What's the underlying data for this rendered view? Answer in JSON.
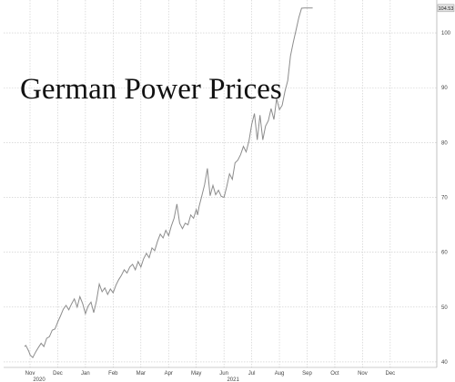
{
  "chart_data": {
    "type": "line",
    "title": "German Power Prices",
    "xlabel": "",
    "ylabel": "",
    "x_tick_labels": [
      "Nov",
      "Dec",
      "Jan",
      "Feb",
      "Mar",
      "Apr",
      "May",
      "Jun",
      "Jul",
      "Aug",
      "Sep",
      "Oct",
      "Nov",
      "Dec"
    ],
    "x_year_labels": [
      {
        "label": "2020",
        "month_index": 0
      },
      {
        "label": "2021",
        "month_index": 7
      }
    ],
    "y_tick_labels": [
      "40",
      "50",
      "60",
      "70",
      "80",
      "90",
      "100"
    ],
    "ylim": [
      39,
      106
    ],
    "last_value_label": "104.53",
    "grid": true,
    "colors": {
      "line": "#8c8c8c",
      "grid": "#c8c8c8",
      "badge": "#e2e2e2"
    },
    "series": [
      {
        "x_month": [
          -0.2,
          -0.15,
          -0.05,
          0,
          0.1,
          0.2,
          0.3,
          0.4,
          0.5,
          0.6,
          0.7,
          0.8,
          0.9,
          1.0,
          1.1,
          1.2,
          1.3,
          1.4,
          1.5,
          1.6,
          1.7,
          1.8,
          1.9,
          2.0,
          2.1,
          2.2,
          2.3,
          2.4,
          2.5,
          2.6,
          2.7,
          2.8,
          2.9,
          3.0,
          3.1,
          3.2,
          3.3,
          3.4,
          3.5,
          3.6,
          3.7,
          3.8,
          3.9,
          4.0,
          4.1,
          4.2,
          4.3,
          4.4,
          4.5,
          4.6,
          4.7,
          4.8,
          4.9,
          5.0,
          5.1,
          5.2,
          5.3,
          5.4,
          5.5,
          5.6,
          5.7,
          5.8,
          5.9,
          6.0,
          6.05,
          6.1,
          6.2,
          6.3,
          6.4,
          6.5,
          6.6,
          6.7,
          6.8,
          6.9,
          7.0,
          7.1,
          7.2,
          7.3,
          7.4,
          7.5,
          7.6,
          7.7,
          7.8,
          7.9,
          8.0,
          8.1,
          8.2,
          8.3,
          8.4,
          8.5,
          8.6,
          8.7,
          8.8,
          8.9,
          9.0,
          9.1,
          9.2,
          9.3,
          9.4,
          9.5,
          9.6,
          9.7,
          9.8,
          9.9,
          10.0,
          10.05,
          10.1,
          10.15,
          10.2
        ],
        "values": [
          42.8,
          43.0,
          42.0,
          41.3,
          40.8,
          41.8,
          42.6,
          43.4,
          42.8,
          44.3,
          44.6,
          45.8,
          46.0,
          47.3,
          48.4,
          49.6,
          50.3,
          49.5,
          50.6,
          51.5,
          50.0,
          51.9,
          50.6,
          48.8,
          50.2,
          50.9,
          49.0,
          51.2,
          54.2,
          52.8,
          53.5,
          52.3,
          53.3,
          52.6,
          54.0,
          55.0,
          55.8,
          56.8,
          56.2,
          57.3,
          57.8,
          56.8,
          58.3,
          57.3,
          58.8,
          59.8,
          59.0,
          60.8,
          60.3,
          62.0,
          63.3,
          62.6,
          64.0,
          63.0,
          64.8,
          66.2,
          68.8,
          65.3,
          64.3,
          65.3,
          65.0,
          66.8,
          66.2,
          67.8,
          66.8,
          68.3,
          70.3,
          72.3,
          75.3,
          70.3,
          72.2,
          70.5,
          71.3,
          70.2,
          70.0,
          72.0,
          74.3,
          73.3,
          76.3,
          76.8,
          77.8,
          79.3,
          78.3,
          80.3,
          83.3,
          85.3,
          80.5,
          85.0,
          80.5,
          83.0,
          84.0,
          86.2,
          84.2,
          88.0,
          86.0,
          86.8,
          89.3,
          91.3,
          95.8,
          98.3,
          100.5,
          102.8,
          104.5,
          104.53,
          104.53,
          104.53,
          104.53,
          104.53,
          104.53
        ]
      }
    ]
  }
}
